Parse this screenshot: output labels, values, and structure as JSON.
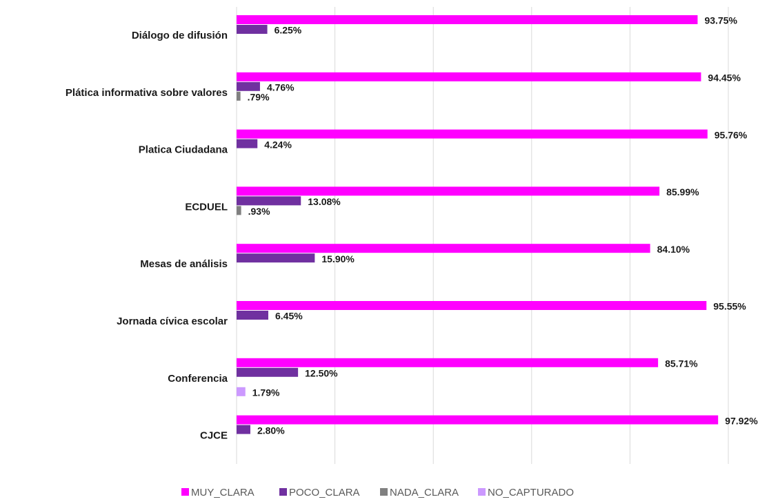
{
  "chart_data": {
    "type": "bar",
    "orientation": "horizontal",
    "categories": [
      "Diálogo de difusión",
      "Plática informativa sobre valores",
      "Platica Ciudadana",
      "ECDUEL",
      "Mesas de análisis",
      "Jornada cívica escolar",
      "Conferencia",
      "CJCE"
    ],
    "series": [
      {
        "name": "MUY_CLARA",
        "color": "#ff00ff",
        "values": [
          93.75,
          94.45,
          95.76,
          85.99,
          84.1,
          95.55,
          85.71,
          97.92
        ],
        "value_labels": [
          "93.75%",
          "94.45%",
          "95.76%",
          "85.99%",
          "84.10%",
          "95.55%",
          "85.71%",
          "97.92%"
        ]
      },
      {
        "name": "POCO_CLARA",
        "color": "#7030a0",
        "values": [
          6.25,
          4.76,
          4.24,
          13.08,
          15.9,
          6.45,
          12.5,
          2.8
        ],
        "value_labels": [
          "6.25%",
          "4.76%",
          "4.24%",
          "13.08%",
          "15.90%",
          "6.45%",
          "12.50%",
          "2.80%"
        ]
      },
      {
        "name": "NADA_CLARA",
        "color": "#808080",
        "values": [
          null,
          0.79,
          null,
          0.93,
          null,
          null,
          null,
          null
        ],
        "value_labels": [
          null,
          ".79%",
          null,
          ".93%",
          null,
          null,
          null,
          null
        ]
      },
      {
        "name": "NO_CAPTURADO",
        "color": "#cc99ff",
        "values": [
          null,
          null,
          null,
          null,
          null,
          null,
          1.79,
          null
        ],
        "value_labels": [
          null,
          null,
          null,
          null,
          null,
          null,
          "1.79%",
          null
        ]
      }
    ],
    "xlim": [
      0,
      100
    ],
    "xticks": [
      0,
      20,
      40,
      60,
      80,
      100
    ],
    "grid": true,
    "legend": "bottom"
  }
}
